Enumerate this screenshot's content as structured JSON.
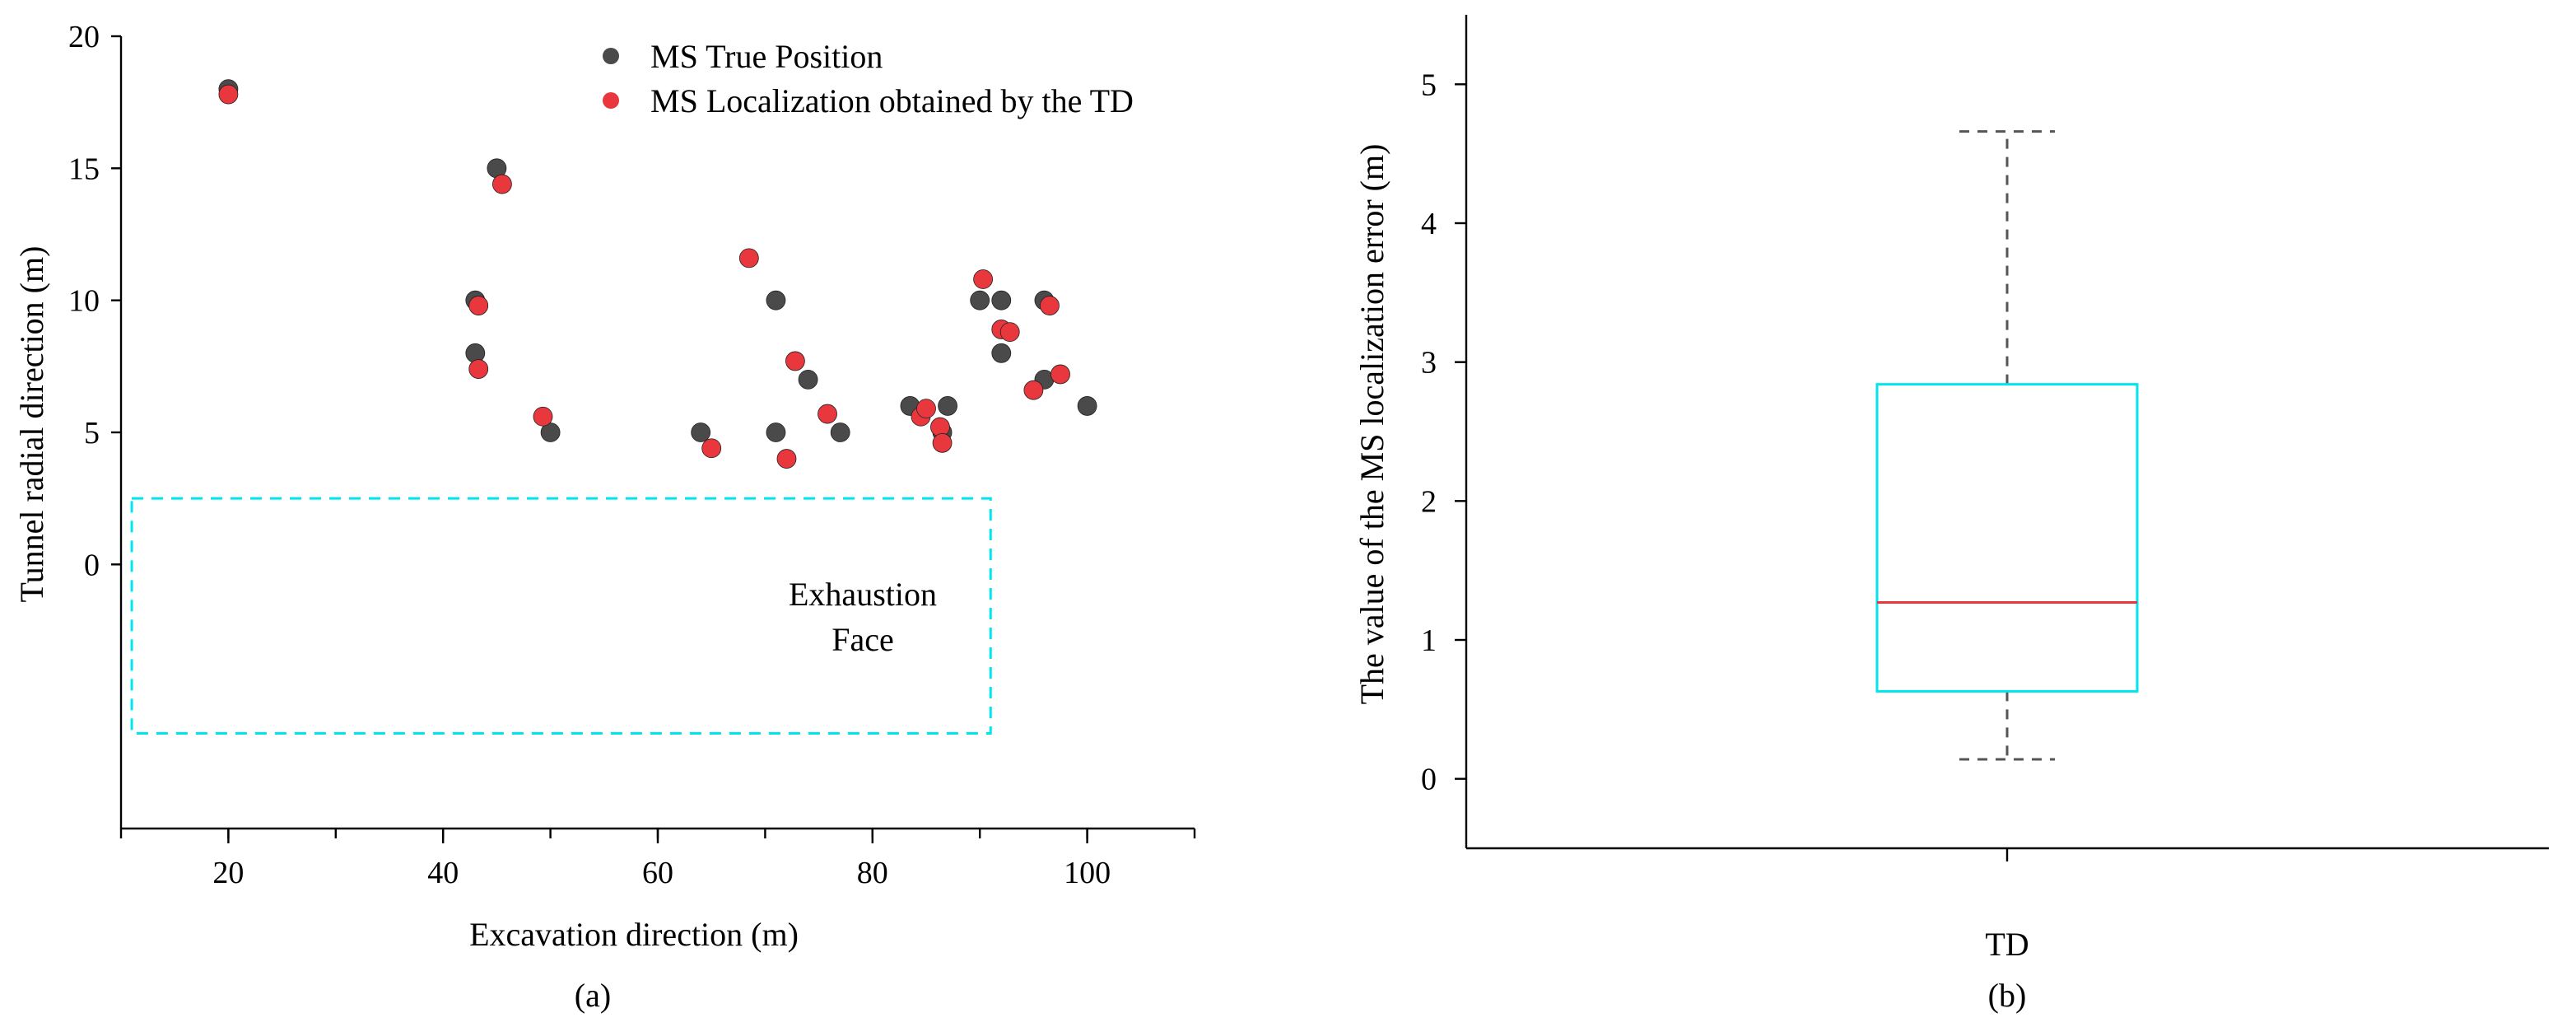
{
  "chart_data": [
    {
      "panel": "a",
      "type": "scatter",
      "caption": "(a)",
      "xlabel": "Excavation direction (m)",
      "ylabel": "Tunnel radial direction (m)",
      "xlim": [
        10,
        110
      ],
      "ylim": [
        -10,
        20
      ],
      "xticks": [
        20,
        40,
        60,
        80,
        100
      ],
      "yticks": [
        0,
        5,
        10,
        15,
        20
      ],
      "legend_position": "top-right",
      "grid": false,
      "annotation": {
        "lines": [
          "Exhaustion",
          "Face"
        ],
        "color": "#00e5ee"
      },
      "exhaustion_face": {
        "x": [
          11,
          91
        ],
        "y": [
          -6.4,
          2.5
        ]
      },
      "series": [
        {
          "name": "MS True Position",
          "color": "#4a4a4a",
          "points": [
            [
              20,
              18
            ],
            [
              45,
              15
            ],
            [
              43,
              10
            ],
            [
              43,
              8
            ],
            [
              50,
              5
            ],
            [
              64,
              5
            ],
            [
              71,
              10
            ],
            [
              71,
              5
            ],
            [
              74,
              7
            ],
            [
              77,
              5
            ],
            [
              83.5,
              6
            ],
            [
              87,
              6
            ],
            [
              86.5,
              5
            ],
            [
              90,
              10
            ],
            [
              92,
              10
            ],
            [
              92,
              8
            ],
            [
              96,
              10
            ],
            [
              96,
              7
            ],
            [
              100,
              6
            ]
          ]
        },
        {
          "name": "MS Localization obtained by the TD",
          "color": "#e8383d",
          "points": [
            [
              20,
              17.8
            ],
            [
              45.5,
              14.4
            ],
            [
              43.3,
              9.8
            ],
            [
              43.3,
              7.4
            ],
            [
              49.3,
              5.6
            ],
            [
              65,
              4.4
            ],
            [
              68.5,
              11.6
            ],
            [
              72,
              4
            ],
            [
              72.8,
              7.7
            ],
            [
              75.8,
              5.7
            ],
            [
              84.5,
              5.6
            ],
            [
              85,
              5.9
            ],
            [
              86.3,
              5.2
            ],
            [
              86.5,
              4.6
            ],
            [
              90.3,
              10.8
            ],
            [
              92,
              8.9
            ],
            [
              92.8,
              8.8
            ],
            [
              95,
              6.6
            ],
            [
              96.5,
              9.8
            ],
            [
              97.5,
              7.2
            ]
          ]
        }
      ]
    },
    {
      "panel": "b",
      "type": "box",
      "caption": "(b)",
      "xlabel": "",
      "ylabel": "The value of the MS  localization error (m)",
      "ylim": [
        -0.5,
        5.5
      ],
      "yticks": [
        0,
        1,
        2,
        3,
        4,
        5
      ],
      "categories": [
        "TD"
      ],
      "box": {
        "whisker_low": 0.14,
        "q1": 0.63,
        "median": 1.27,
        "q3": 2.84,
        "whisker_high": 4.66,
        "box_color": "#00e5ee",
        "median_color": "#e8383d",
        "whisker_color": "#555555"
      }
    }
  ]
}
